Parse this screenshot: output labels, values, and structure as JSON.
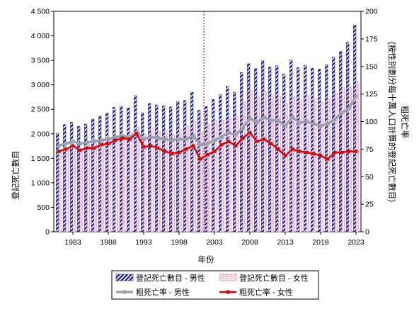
{
  "chart_data": {
    "type": "bar",
    "xlabel": "年份",
    "ylabel_left": "登記死亡數目",
    "ylabel_right": "粗死亡率\n(按性別劃分每十萬人口計算的登記死亡數目)",
    "ylim_left": [
      0,
      4500
    ],
    "ylim_right": [
      0,
      200
    ],
    "yticks_left": [
      "0",
      "500",
      "1 000",
      "1 500",
      "2 000",
      "2 500",
      "3 000",
      "3 500",
      "4 000",
      "4 500"
    ],
    "yticks_right": [
      "0",
      "25",
      "50",
      "75",
      "100",
      "125",
      "150",
      "175",
      "200"
    ],
    "x": [
      1981,
      1982,
      1983,
      1984,
      1985,
      1986,
      1987,
      1988,
      1989,
      1990,
      1991,
      1992,
      1993,
      1994,
      1995,
      1996,
      1997,
      1998,
      1999,
      2000,
      2001,
      2002,
      2003,
      2004,
      2005,
      2006,
      2007,
      2008,
      2009,
      2010,
      2011,
      2012,
      2013,
      2014,
      2015,
      2016,
      2017,
      2018,
      2019,
      2020,
      2021,
      2022,
      2023
    ],
    "x_tick_labels": [
      "1983",
      "1988",
      "1993",
      "1998",
      "2003",
      "2008",
      "2013",
      "2018",
      "2023"
    ],
    "x_tick_years": [
      1983,
      1988,
      1993,
      1998,
      2003,
      2008,
      2013,
      2018,
      2023
    ],
    "reference_line_year": 2001.5,
    "series": [
      {
        "name": "登記死亡數目 - 男性",
        "kind": "bar",
        "axis": "left",
        "color": "#1a1aa0",
        "values": [
          2010,
          2190,
          2240,
          2150,
          2200,
          2300,
          2360,
          2420,
          2540,
          2560,
          2530,
          2780,
          2430,
          2620,
          2590,
          2570,
          2550,
          2660,
          2680,
          2850,
          2480,
          2560,
          2700,
          2800,
          2970,
          2850,
          3250,
          3430,
          3330,
          3490,
          3360,
          3390,
          3220,
          3510,
          3350,
          3400,
          3340,
          3320,
          3410,
          3570,
          3680,
          3870,
          4220
        ]
      },
      {
        "name": "登記死亡數目 - 女性",
        "kind": "bar",
        "axis": "left",
        "color": "#f4b8c8",
        "values": [
          1650,
          1700,
          1750,
          1690,
          1780,
          1800,
          1850,
          1860,
          1960,
          1960,
          2040,
          2140,
          1990,
          2120,
          2060,
          2060,
          1990,
          2090,
          2160,
          2260,
          2030,
          2200,
          2280,
          2280,
          2320,
          2360,
          2650,
          2890,
          2770,
          2870,
          2780,
          2760,
          2630,
          2760,
          2710,
          2790,
          2720,
          2640,
          2710,
          2830,
          2950,
          2950,
          3060
        ]
      },
      {
        "name": "粗死亡率 - 男性",
        "kind": "line",
        "axis": "right",
        "color": "#9aa0ad",
        "values": [
          78,
          80,
          82,
          80,
          81,
          82,
          83,
          84,
          86,
          87,
          86,
          90,
          84,
          86,
          85,
          84,
          83,
          84,
          84,
          87,
          79,
          80,
          83,
          86,
          90,
          88,
          94,
          103,
          99,
          104,
          101,
          101,
          96,
          104,
          99,
          100,
          98,
          96,
          98,
          102,
          108,
          112,
          123
        ]
      },
      {
        "name": "粗死亡率 - 女性",
        "kind": "line",
        "axis": "right",
        "color": "#e00000",
        "values": [
          73,
          75,
          78,
          74,
          76,
          76,
          79,
          80,
          83,
          85,
          84,
          89,
          77,
          78,
          76,
          73,
          71,
          72,
          75,
          78,
          66,
          70,
          73,
          79,
          82,
          78,
          85,
          90,
          82,
          84,
          80,
          75,
          69,
          75,
          73,
          72,
          71,
          69,
          66,
          72,
          72,
          73,
          73
        ]
      }
    ],
    "legend": {
      "placement": "bottom",
      "entries": [
        "登記死亡數目 - 男性",
        "登記死亡數目 - 女性",
        "粗死亡率 - 男性",
        "粗死亡率 - 女性"
      ]
    }
  }
}
